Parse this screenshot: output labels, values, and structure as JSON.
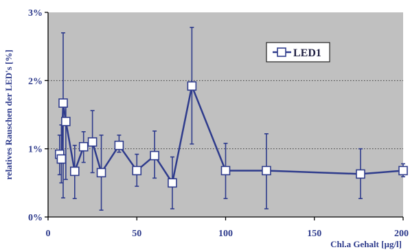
{
  "chart_data": {
    "type": "scatter",
    "xlabel": "Chl.a Gehalt  [µg/l]",
    "ylabel": "relatives Rauschen der LED's  [%]",
    "xlim": [
      0,
      200
    ],
    "ylim": [
      0,
      3
    ],
    "x_ticks": [
      0,
      50,
      100,
      150,
      200
    ],
    "y_ticks": [
      0,
      1,
      2,
      3
    ],
    "x_tick_labels": [
      "0",
      "50",
      "100",
      "150",
      "200"
    ],
    "y_tick_labels": [
      "0%",
      "1%",
      "2%",
      "3%"
    ],
    "grid": "horizontal dotted at 1% and 2%",
    "legend_position": "top-right",
    "series": [
      {
        "name": "LED1",
        "color": "#2e3b8c",
        "marker": "open-square",
        "line": true,
        "points": [
          {
            "x": 6.5,
            "y": 0.92,
            "err_low": 0.62,
            "err_high": 1.2
          },
          {
            "x": 7.5,
            "y": 0.85,
            "err_low": 0.5,
            "err_high": 1.35
          },
          {
            "x": 8.5,
            "y": 1.67,
            "err_low": 0.28,
            "err_high": 2.7
          },
          {
            "x": 10,
            "y": 1.4,
            "err_low": 0.55,
            "err_high": 1.62
          },
          {
            "x": 15,
            "y": 0.67,
            "err_low": 0.27,
            "err_high": 1.05
          },
          {
            "x": 20,
            "y": 1.03,
            "err_low": 0.8,
            "err_high": 1.25
          },
          {
            "x": 25,
            "y": 1.1,
            "err_low": 0.65,
            "err_high": 1.56
          },
          {
            "x": 30,
            "y": 0.65,
            "err_low": 0.1,
            "err_high": 1.2
          },
          {
            "x": 40,
            "y": 1.05,
            "err_low": 0.95,
            "err_high": 1.2
          },
          {
            "x": 50,
            "y": 0.68,
            "err_low": 0.45,
            "err_high": 0.92
          },
          {
            "x": 60,
            "y": 0.9,
            "err_low": 0.57,
            "err_high": 1.26
          },
          {
            "x": 70,
            "y": 0.5,
            "err_low": 0.12,
            "err_high": 0.88
          },
          {
            "x": 81,
            "y": 1.92,
            "err_low": 1.07,
            "err_high": 2.78
          },
          {
            "x": 100,
            "y": 0.68,
            "err_low": 0.27,
            "err_high": 1.08
          },
          {
            "x": 123,
            "y": 0.68,
            "err_low": 0.12,
            "err_high": 1.22
          },
          {
            "x": 176,
            "y": 0.63,
            "err_low": 0.27,
            "err_high": 1.0
          },
          {
            "x": 200,
            "y": 0.68,
            "err_low": 0.59,
            "err_high": 0.78
          }
        ]
      }
    ],
    "colors": {
      "plot_background": "#c0c0c0",
      "series": "#2e3b8c",
      "text": "#2e3b8c",
      "grid": "#3a3a3a"
    }
  }
}
